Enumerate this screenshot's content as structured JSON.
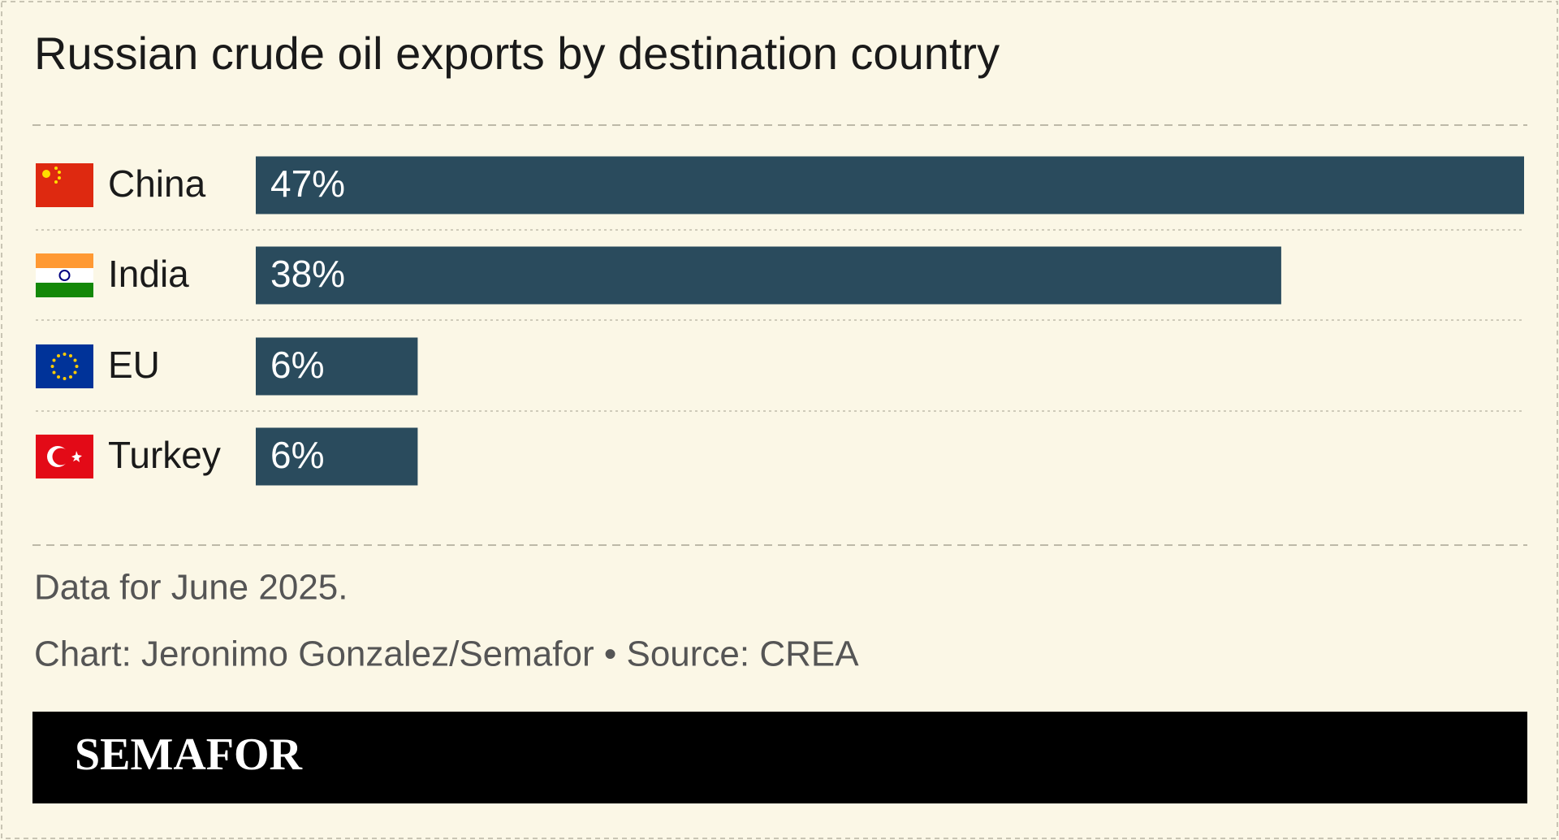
{
  "chart_data": {
    "type": "bar",
    "orientation": "horizontal",
    "title": "Russian crude oil exports by destination country",
    "categories": [
      "China",
      "India",
      "EU",
      "Turkey"
    ],
    "values": [
      47,
      38,
      6,
      6
    ],
    "value_labels": [
      "47%",
      "38%",
      "6%",
      "6%"
    ],
    "color": "#2a4b5d",
    "note": "Data for June 2025.",
    "credit": "Chart: Jeronimo Gonzalez/Semafor • Source: CREA",
    "brand": "SEMAFOR"
  }
}
